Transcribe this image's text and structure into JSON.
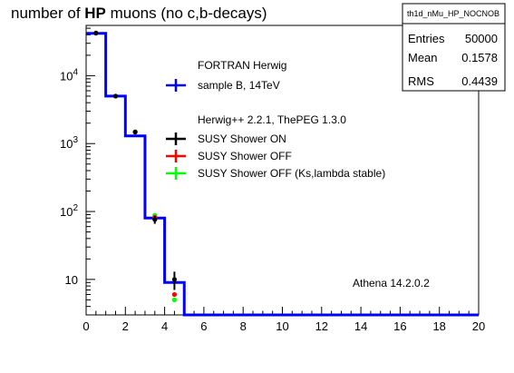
{
  "chart_data": {
    "type": "histogram",
    "title_prefix": "number of ",
    "title_bold": "HP",
    "title_suffix": " muons (no c,b-decays)",
    "xlim": [
      0,
      20
    ],
    "ylim_log": [
      3,
      55000
    ],
    "y_scale": "log",
    "x_ticks": [
      "0",
      "2",
      "4",
      "6",
      "8",
      "10",
      "12",
      "14",
      "16",
      "18",
      "20"
    ],
    "y_ticks": [
      {
        "value": 10,
        "base": "10",
        "exp": ""
      },
      {
        "value": 100,
        "base": "10",
        "exp": "2"
      },
      {
        "value": 1000,
        "base": "10",
        "exp": "3"
      },
      {
        "value": 10000,
        "base": "10",
        "exp": "4"
      }
    ],
    "stats": {
      "name": "th1d_nMu_HP_NOCNOB",
      "rows": [
        {
          "label": "Entries",
          "value": "50000"
        },
        {
          "label": "Mean",
          "value": "0.1578"
        },
        {
          "label": "RMS",
          "value": "0.4439"
        }
      ]
    },
    "histogram": {
      "name": "sample B, 14TeV",
      "color": "#0000ff",
      "bin_edges": [
        0,
        1,
        2,
        3,
        4,
        5,
        6,
        7,
        8,
        9,
        10,
        11,
        12,
        13,
        14,
        15,
        16,
        17,
        18,
        19,
        20
      ],
      "values": [
        42000,
        5000,
        1300,
        80,
        9,
        0,
        0,
        0,
        0,
        0,
        0,
        0,
        0,
        0,
        0,
        0,
        0,
        0,
        0,
        0
      ]
    },
    "series": [
      {
        "name": "SUSY Shower OFF (Ks,lambda stable)",
        "color": "#00ff00",
        "x": [
          0.5,
          1.5,
          2.5,
          3.5,
          4.5
        ],
        "y": [
          42500,
          5000,
          1500,
          88,
          5
        ],
        "err": [
          0,
          0,
          0,
          0,
          0
        ]
      },
      {
        "name": "SUSY Shower OFF",
        "color": "#ff0000",
        "x": [
          0.5,
          1.5,
          2.5,
          3.5,
          4.5
        ],
        "y": [
          42500,
          5000,
          1480,
          82,
          6
        ],
        "err": [
          0,
          0,
          0,
          0,
          0
        ]
      },
      {
        "name": "SUSY Shower ON",
        "color": "#000000",
        "x": [
          0.5,
          1.5,
          2.5,
          3.5,
          4.5
        ],
        "y": [
          42300,
          5000,
          1480,
          76,
          10
        ],
        "err": [
          800,
          200,
          100,
          10,
          3
        ]
      }
    ],
    "legend": {
      "header1": "FORTRAN Herwig",
      "entry1": "sample B, 14TeV",
      "header2": "Herwig++ 2.2.1, ThePEG 1.3.0",
      "entries": [
        {
          "label": "SUSY Shower ON",
          "color": "#000000"
        },
        {
          "label": "SUSY Shower OFF",
          "color": "#ff0000"
        },
        {
          "label": "SUSY Shower OFF (Ks,lambda stable)",
          "color": "#00ff00"
        }
      ]
    },
    "annotation": "Athena 14.2.0.2"
  }
}
